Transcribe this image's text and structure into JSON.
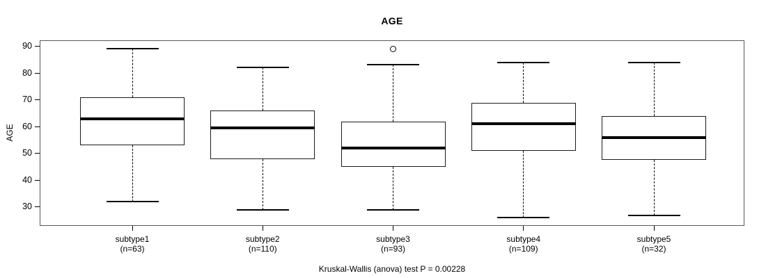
{
  "chart_data": {
    "type": "boxplot",
    "title": "AGE",
    "ylabel": "AGE",
    "annotation": "Kruskal-Wallis (anova) test P = 0.00228",
    "ylim": [
      23,
      92.2
    ],
    "yticks": [
      30,
      40,
      50,
      60,
      70,
      80,
      90
    ],
    "grid": false,
    "categories": [
      "subtype1",
      "subtype2",
      "subtype3",
      "subtype4",
      "subtype5"
    ],
    "groups": [
      {
        "label": "subtype1",
        "count_label": "(n=63)",
        "n": 63,
        "whisker_low": 32,
        "q1": 53,
        "median": 63,
        "q3": 71,
        "whisker_high": 89,
        "outliers": []
      },
      {
        "label": "subtype2",
        "count_label": "(n=110)",
        "n": 110,
        "whisker_low": 29,
        "q1": 48,
        "median": 59.5,
        "q3": 66,
        "whisker_high": 82,
        "outliers": []
      },
      {
        "label": "subtype3",
        "count_label": "(n=93)",
        "n": 93,
        "whisker_low": 29,
        "q1": 45,
        "median": 52,
        "q3": 62,
        "whisker_high": 83,
        "outliers": [
          89
        ]
      },
      {
        "label": "subtype4",
        "count_label": "(n=109)",
        "n": 109,
        "whisker_low": 26,
        "q1": 51,
        "median": 61,
        "q3": 69,
        "whisker_high": 84,
        "outliers": []
      },
      {
        "label": "subtype5",
        "count_label": "(n=32)",
        "n": 32,
        "whisker_low": 27,
        "q1": 47.5,
        "median": 56,
        "q3": 64,
        "whisker_high": 84,
        "outliers": []
      }
    ]
  }
}
